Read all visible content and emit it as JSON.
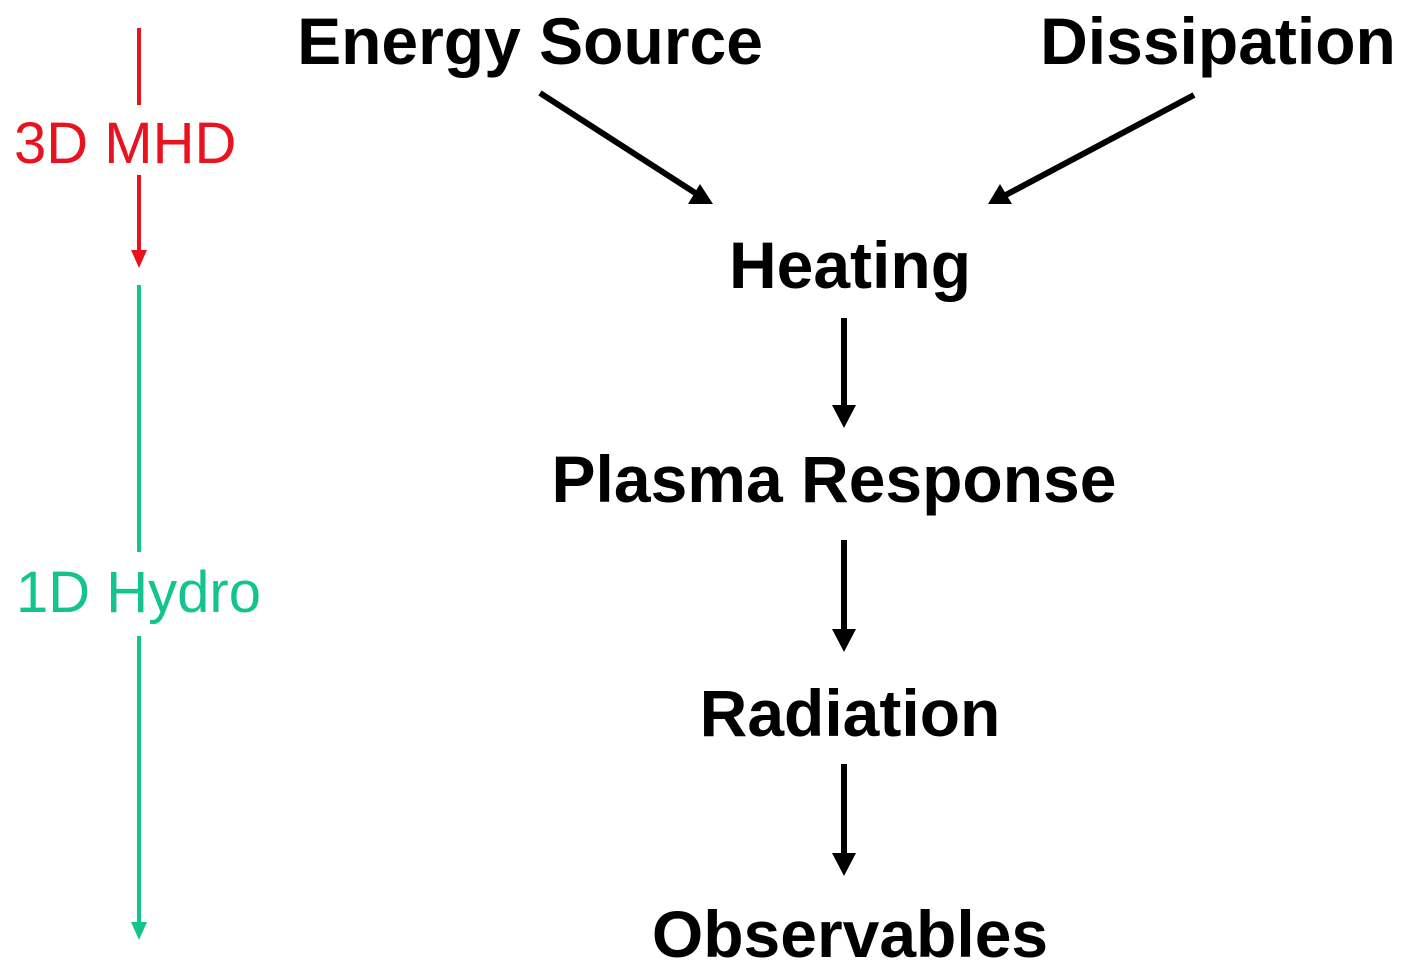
{
  "nodes": [
    {
      "label": "Energy Source"
    },
    {
      "label": "Dissipation"
    },
    {
      "label": "Heating"
    },
    {
      "label": "Plasma Response"
    },
    {
      "label": "Radiation"
    },
    {
      "label": "Observables"
    }
  ],
  "stages": [
    {
      "label": "3D MHD"
    },
    {
      "label": "1D Hydro"
    }
  ]
}
